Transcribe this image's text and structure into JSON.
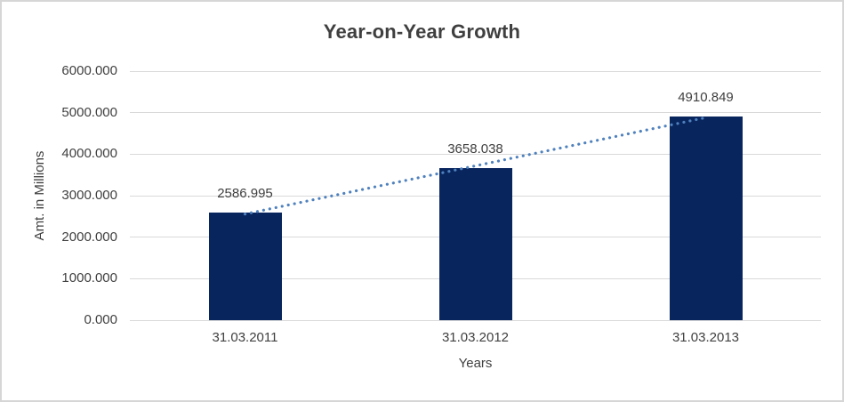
{
  "chart_data": {
    "type": "bar",
    "title": "Year-on-Year Growth",
    "categories": [
      "31.03.2011",
      "31.03.2012",
      "31.03.2013"
    ],
    "values": [
      2586.995,
      3658.038,
      4910.849
    ],
    "data_labels": [
      "2586.995",
      "3658.038",
      "4910.849"
    ],
    "xlabel": "Years",
    "ylabel": "Amt. in Millions",
    "ylim": [
      0,
      6000
    ],
    "ytick_step": 1000,
    "ytick_labels": [
      "0.000",
      "1000.000",
      "2000.000",
      "3000.000",
      "4000.000",
      "5000.000",
      "6000.000"
    ],
    "grid": "horizontal",
    "legend_position": "none",
    "trendline": {
      "type": "linear",
      "style": "dotted"
    },
    "colors": {
      "bar": "#08255e",
      "trendline": "#4f81bd",
      "gridline": "#d9d9d9",
      "text": "#404040",
      "title_text": "#3f3f3f",
      "border": "#d6d6d6",
      "background": "#ffffff"
    }
  }
}
